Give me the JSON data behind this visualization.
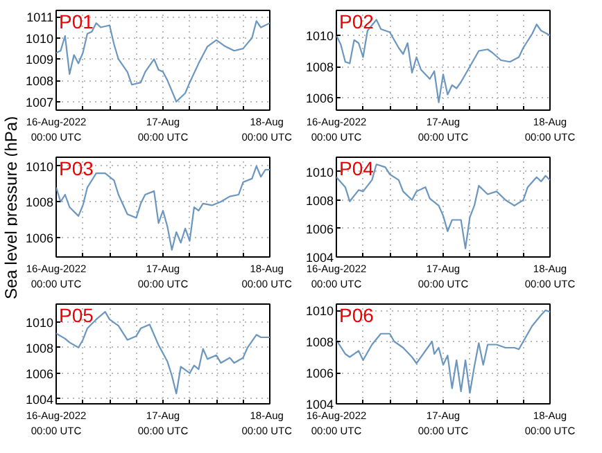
{
  "chart_data": [
    {
      "type": "line",
      "title": "P01",
      "xlim": [
        "2022-08-16T00:00",
        "2022-08-18T00:00"
      ],
      "ylim": [
        1006.6,
        1011.3
      ],
      "yticks": [
        1007,
        1008,
        1009,
        1010,
        1011
      ],
      "grid": true,
      "xticks": [
        {
          "value": "2022-08-16T00:00",
          "label": "16-Aug-2022\n00:00 UTC"
        },
        {
          "value": "2022-08-16T06:00",
          "label": null
        },
        {
          "value": "2022-08-16T12:00",
          "label": null
        },
        {
          "value": "2022-08-16T18:00",
          "label": null
        },
        {
          "value": "2022-08-17T00:00",
          "label": "17-Aug\n00:00 UTC"
        },
        {
          "value": "2022-08-17T06:00",
          "label": null
        },
        {
          "value": "2022-08-17T12:00",
          "label": null
        },
        {
          "value": "2022-08-17T18:00",
          "label": null
        },
        {
          "value": "2022-08-18T00:00",
          "label": "18-Aug\n00:00 UTC"
        }
      ],
      "series": [
        {
          "color": "#6a96c0",
          "x": [
            "2022-08-16T00:00",
            "2022-08-16T01:00",
            "2022-08-16T02:00",
            "2022-08-16T03:00",
            "2022-08-16T04:00",
            "2022-08-16T05:00",
            "2022-08-16T06:00",
            "2022-08-16T07:00",
            "2022-08-16T08:00",
            "2022-08-16T09:00",
            "2022-08-16T10:00",
            "2022-08-16T12:00",
            "2022-08-16T13:00",
            "2022-08-16T14:00",
            "2022-08-16T16:00",
            "2022-08-16T17:00",
            "2022-08-16T19:00",
            "2022-08-16T20:00",
            "2022-08-16T22:00",
            "2022-08-16T23:00",
            "2022-08-17T00:00",
            "2022-08-17T01:00",
            "2022-08-17T02:00",
            "2022-08-17T03:00",
            "2022-08-17T05:00",
            "2022-08-17T06:00",
            "2022-08-17T08:00",
            "2022-08-17T10:00",
            "2022-08-17T12:00",
            "2022-08-17T14:00",
            "2022-08-17T16:00",
            "2022-08-17T18:00",
            "2022-08-17T20:00",
            "2022-08-17T21:00",
            "2022-08-17T22:00",
            "2022-08-18T00:00"
          ],
          "values": [
            1009.3,
            1009.4,
            1010.1,
            1008.3,
            1009.2,
            1008.8,
            1009.3,
            1010.2,
            1010.3,
            1010.7,
            1010.5,
            1010.6,
            1009.7,
            1009.0,
            1008.4,
            1007.8,
            1007.9,
            1008.4,
            1009.0,
            1008.5,
            1008.4,
            1008.0,
            1007.5,
            1007.0,
            1007.4,
            1007.9,
            1008.8,
            1009.6,
            1009.9,
            1009.6,
            1009.4,
            1009.5,
            1010.0,
            1010.8,
            1010.5,
            1010.7
          ]
        }
      ]
    },
    {
      "type": "line",
      "title": "P02",
      "xlim": [
        "2022-08-16T00:00",
        "2022-08-18T00:00"
      ],
      "ylim": [
        1005.2,
        1011.6
      ],
      "yticks": [
        1006,
        1008,
        1010
      ],
      "grid": true,
      "xticks": [
        {
          "value": "2022-08-16T00:00",
          "label": "16-Aug-2022\n00:00 UTC"
        },
        {
          "value": "2022-08-16T06:00",
          "label": null
        },
        {
          "value": "2022-08-16T12:00",
          "label": null
        },
        {
          "value": "2022-08-16T18:00",
          "label": null
        },
        {
          "value": "2022-08-17T00:00",
          "label": "17-Aug\n00:00 UTC"
        },
        {
          "value": "2022-08-17T06:00",
          "label": null
        },
        {
          "value": "2022-08-17T12:00",
          "label": null
        },
        {
          "value": "2022-08-17T18:00",
          "label": null
        },
        {
          "value": "2022-08-18T00:00",
          "label": "18-Aug\n00:00 UTC"
        }
      ],
      "series": [
        {
          "color": "#6a96c0",
          "x": [
            "2022-08-16T00:00",
            "2022-08-16T01:00",
            "2022-08-16T02:00",
            "2022-08-16T03:00",
            "2022-08-16T04:00",
            "2022-08-16T05:00",
            "2022-08-16T06:00",
            "2022-08-16T07:00",
            "2022-08-16T09:00",
            "2022-08-16T10:00",
            "2022-08-16T12:00",
            "2022-08-16T14:00",
            "2022-08-16T15:00",
            "2022-08-16T16:00",
            "2022-08-16T17:00",
            "2022-08-16T18:00",
            "2022-08-16T19:00",
            "2022-08-16T21:00",
            "2022-08-16T22:00",
            "2022-08-16T23:00",
            "2022-08-17T00:00",
            "2022-08-17T01:00",
            "2022-08-17T02:00",
            "2022-08-17T03:00",
            "2022-08-17T04:00",
            "2022-08-17T06:00",
            "2022-08-17T08:00",
            "2022-08-17T10:00",
            "2022-08-17T11:00",
            "2022-08-17T13:00",
            "2022-08-17T15:00",
            "2022-08-17T17:00",
            "2022-08-17T18:00",
            "2022-08-17T20:00",
            "2022-08-17T21:00",
            "2022-08-17T22:00",
            "2022-08-18T00:00"
          ],
          "values": [
            1010.0,
            1009.4,
            1008.3,
            1008.2,
            1009.7,
            1009.5,
            1008.6,
            1010.3,
            1011.0,
            1010.4,
            1010.2,
            1009.2,
            1008.8,
            1009.5,
            1007.6,
            1008.6,
            1007.8,
            1007.2,
            1007.7,
            1005.7,
            1007.5,
            1006.2,
            1006.8,
            1006.6,
            1007.0,
            1008.0,
            1009.0,
            1009.1,
            1008.9,
            1008.4,
            1008.3,
            1008.6,
            1009.2,
            1010.1,
            1010.7,
            1010.3,
            1010.0
          ]
        }
      ]
    },
    {
      "type": "line",
      "title": "P03",
      "ylabel": "Sea level pressure (hPa)",
      "xlim": [
        "2022-08-16T00:00",
        "2022-08-18T00:00"
      ],
      "ylim": [
        1004.9,
        1010.5
      ],
      "yticks": [
        1006,
        1008,
        1010
      ],
      "grid": true,
      "xticks": [
        {
          "value": "2022-08-16T00:00",
          "label": "16-Aug-2022\n00:00 UTC"
        },
        {
          "value": "2022-08-16T06:00",
          "label": null
        },
        {
          "value": "2022-08-16T12:00",
          "label": null
        },
        {
          "value": "2022-08-16T18:00",
          "label": null
        },
        {
          "value": "2022-08-17T00:00",
          "label": "17-Aug\n00:00 UTC"
        },
        {
          "value": "2022-08-17T06:00",
          "label": null
        },
        {
          "value": "2022-08-17T12:00",
          "label": null
        },
        {
          "value": "2022-08-17T18:00",
          "label": null
        },
        {
          "value": "2022-08-18T00:00",
          "label": "18-Aug\n00:00 UTC"
        }
      ],
      "series": [
        {
          "color": "#6a96c0",
          "x": [
            "2022-08-16T00:00",
            "2022-08-16T01:00",
            "2022-08-16T02:00",
            "2022-08-16T03:00",
            "2022-08-16T05:00",
            "2022-08-16T06:00",
            "2022-08-16T07:00",
            "2022-08-16T09:00",
            "2022-08-16T11:00",
            "2022-08-16T13:00",
            "2022-08-16T14:00",
            "2022-08-16T16:00",
            "2022-08-16T18:00",
            "2022-08-16T19:00",
            "2022-08-16T20:00",
            "2022-08-16T22:00",
            "2022-08-16T23:00",
            "2022-08-17T00:00",
            "2022-08-17T01:00",
            "2022-08-17T02:00",
            "2022-08-17T03:00",
            "2022-08-17T04:00",
            "2022-08-17T05:00",
            "2022-08-17T06:00",
            "2022-08-17T07:00",
            "2022-08-17T08:00",
            "2022-08-17T09:00",
            "2022-08-17T11:00",
            "2022-08-17T13:00",
            "2022-08-17T15:00",
            "2022-08-17T17:00",
            "2022-08-17T18:00",
            "2022-08-17T20:00",
            "2022-08-17T21:00",
            "2022-08-17T22:00",
            "2022-08-17T23:00",
            "2022-08-18T00:00"
          ],
          "values": [
            1008.8,
            1008.0,
            1008.4,
            1007.7,
            1007.2,
            1007.8,
            1008.8,
            1009.6,
            1009.6,
            1009.2,
            1008.4,
            1007.3,
            1007.1,
            1007.9,
            1008.4,
            1008.6,
            1006.8,
            1007.5,
            1006.6,
            1005.3,
            1006.3,
            1005.7,
            1006.5,
            1005.8,
            1007.7,
            1007.5,
            1007.9,
            1007.8,
            1008.0,
            1008.3,
            1008.4,
            1009.1,
            1009.3,
            1010.0,
            1009.4,
            1009.8,
            1009.8
          ]
        }
      ]
    },
    {
      "type": "line",
      "title": "P04",
      "xlim": [
        "2022-08-16T00:00",
        "2022-08-18T00:00"
      ],
      "ylim": [
        1004,
        1011
      ],
      "yticks": [
        1004,
        1006,
        1008,
        1010
      ],
      "grid": true,
      "xticks": [
        {
          "value": "2022-08-16T00:00",
          "label": "16-Aug-2022\n00:00 UTC"
        },
        {
          "value": "2022-08-16T06:00",
          "label": null
        },
        {
          "value": "2022-08-16T12:00",
          "label": null
        },
        {
          "value": "2022-08-16T18:00",
          "label": null
        },
        {
          "value": "2022-08-17T00:00",
          "label": "17-Aug\n00:00 UTC"
        },
        {
          "value": "2022-08-17T06:00",
          "label": null
        },
        {
          "value": "2022-08-17T12:00",
          "label": null
        },
        {
          "value": "2022-08-17T18:00",
          "label": null
        },
        {
          "value": "2022-08-18T00:00",
          "label": "18-Aug\n00:00 UTC"
        }
      ],
      "series": [
        {
          "color": "#6a96c0",
          "x": [
            "2022-08-16T00:00",
            "2022-08-16T02:00",
            "2022-08-16T03:00",
            "2022-08-16T05:00",
            "2022-08-16T06:00",
            "2022-08-16T08:00",
            "2022-08-16T09:00",
            "2022-08-16T11:00",
            "2022-08-16T12:00",
            "2022-08-16T14:00",
            "2022-08-16T15:00",
            "2022-08-16T17:00",
            "2022-08-16T18:00",
            "2022-08-16T20:00",
            "2022-08-16T21:00",
            "2022-08-16T23:00",
            "2022-08-17T00:00",
            "2022-08-17T01:00",
            "2022-08-17T02:00",
            "2022-08-17T04:00",
            "2022-08-17T05:00",
            "2022-08-17T06:00",
            "2022-08-17T07:00",
            "2022-08-17T08:00",
            "2022-08-17T10:00",
            "2022-08-17T12:00",
            "2022-08-17T14:00",
            "2022-08-17T16:00",
            "2022-08-17T18:00",
            "2022-08-17T19:00",
            "2022-08-17T21:00",
            "2022-08-17T22:00",
            "2022-08-17T23:00",
            "2022-08-18T00:00"
          ],
          "values": [
            1009.6,
            1008.9,
            1007.9,
            1008.7,
            1008.6,
            1009.4,
            1010.5,
            1010.3,
            1009.8,
            1009.4,
            1008.6,
            1008.0,
            1008.6,
            1008.9,
            1008.1,
            1007.6,
            1006.9,
            1005.8,
            1006.6,
            1006.6,
            1004.6,
            1006.8,
            1007.6,
            1009.0,
            1008.4,
            1008.6,
            1008.0,
            1007.6,
            1008.0,
            1008.9,
            1009.6,
            1009.3,
            1009.7,
            1009.4
          ]
        }
      ]
    },
    {
      "type": "line",
      "title": "P05",
      "xlim": [
        "2022-08-16T00:00",
        "2022-08-18T00:00"
      ],
      "ylim": [
        1003.6,
        1011.4
      ],
      "yticks": [
        1004,
        1006,
        1008,
        1010
      ],
      "grid": true,
      "xticks": [
        {
          "value": "2022-08-16T00:00",
          "label": "16-Aug-2022\n00:00 UTC"
        },
        {
          "value": "2022-08-16T06:00",
          "label": null
        },
        {
          "value": "2022-08-16T12:00",
          "label": null
        },
        {
          "value": "2022-08-16T18:00",
          "label": null
        },
        {
          "value": "2022-08-17T00:00",
          "label": "17-Aug\n00:00 UTC"
        },
        {
          "value": "2022-08-17T06:00",
          "label": null
        },
        {
          "value": "2022-08-17T12:00",
          "label": null
        },
        {
          "value": "2022-08-17T18:00",
          "label": null
        },
        {
          "value": "2022-08-18T00:00",
          "label": "18-Aug\n00:00 UTC"
        }
      ],
      "series": [
        {
          "color": "#6a96c0",
          "x": [
            "2022-08-16T00:00",
            "2022-08-16T02:00",
            "2022-08-16T03:00",
            "2022-08-16T05:00",
            "2022-08-16T06:00",
            "2022-08-16T07:00",
            "2022-08-16T09:00",
            "2022-08-16T11:00",
            "2022-08-16T12:00",
            "2022-08-16T14:00",
            "2022-08-16T16:00",
            "2022-08-16T18:00",
            "2022-08-16T19:00",
            "2022-08-16T21:00",
            "2022-08-16T22:00",
            "2022-08-16T23:00",
            "2022-08-17T01:00",
            "2022-08-17T02:00",
            "2022-08-17T03:00",
            "2022-08-17T04:00",
            "2022-08-17T06:00",
            "2022-08-17T07:00",
            "2022-08-17T08:00",
            "2022-08-17T09:00",
            "2022-08-17T10:00",
            "2022-08-17T12:00",
            "2022-08-17T13:00",
            "2022-08-17T15:00",
            "2022-08-17T16:00",
            "2022-08-17T18:00",
            "2022-08-17T19:00",
            "2022-08-17T21:00",
            "2022-08-17T22:00",
            "2022-08-18T00:00"
          ],
          "values": [
            1009.1,
            1008.7,
            1008.4,
            1008.0,
            1008.6,
            1009.5,
            1010.2,
            1010.8,
            1010.2,
            1009.7,
            1008.6,
            1008.9,
            1009.5,
            1009.8,
            1009.0,
            1008.2,
            1006.9,
            1005.8,
            1004.4,
            1006.5,
            1006.0,
            1006.6,
            1006.3,
            1007.9,
            1007.1,
            1007.4,
            1006.8,
            1007.2,
            1006.8,
            1007.2,
            1008.0,
            1009.0,
            1008.8,
            1008.8
          ]
        }
      ]
    },
    {
      "type": "line",
      "title": "P06",
      "xlim": [
        "2022-08-16T00:00",
        "2022-08-18T00:00"
      ],
      "ylim": [
        1004,
        1010.4
      ],
      "yticks": [
        1004,
        1006,
        1008,
        1010
      ],
      "grid": true,
      "xticks": [
        {
          "value": "2022-08-16T00:00",
          "label": "16-Aug-2022\n00:00 UTC"
        },
        {
          "value": "2022-08-16T06:00",
          "label": null
        },
        {
          "value": "2022-08-16T12:00",
          "label": null
        },
        {
          "value": "2022-08-16T18:00",
          "label": null
        },
        {
          "value": "2022-08-17T00:00",
          "label": "17-Aug\n00:00 UTC"
        },
        {
          "value": "2022-08-17T06:00",
          "label": null
        },
        {
          "value": "2022-08-17T12:00",
          "label": null
        },
        {
          "value": "2022-08-17T18:00",
          "label": null
        },
        {
          "value": "2022-08-18T00:00",
          "label": "18-Aug\n00:00 UTC"
        }
      ],
      "series": [
        {
          "color": "#6a96c0",
          "x": [
            "2022-08-16T00:00",
            "2022-08-16T02:00",
            "2022-08-16T03:00",
            "2022-08-16T05:00",
            "2022-08-16T06:00",
            "2022-08-16T08:00",
            "2022-08-16T10:00",
            "2022-08-16T12:00",
            "2022-08-16T13:00",
            "2022-08-16T15:00",
            "2022-08-16T17:00",
            "2022-08-16T18:00",
            "2022-08-16T20:00",
            "2022-08-16T21:30",
            "2022-08-16T22:00",
            "2022-08-16T23:00",
            "2022-08-17T00:00",
            "2022-08-17T01:00",
            "2022-08-17T02:00",
            "2022-08-17T03:00",
            "2022-08-17T04:00",
            "2022-08-17T05:00",
            "2022-08-17T06:00",
            "2022-08-17T07:00",
            "2022-08-17T08:00",
            "2022-08-17T09:00",
            "2022-08-17T10:00",
            "2022-08-17T12:00",
            "2022-08-17T14:00",
            "2022-08-17T16:00",
            "2022-08-17T17:00",
            "2022-08-17T18:00",
            "2022-08-17T20:00",
            "2022-08-17T22:00",
            "2022-08-17T23:00",
            "2022-08-18T00:00"
          ],
          "values": [
            1008.1,
            1007.2,
            1007.0,
            1007.4,
            1006.8,
            1007.8,
            1008.5,
            1008.5,
            1008.0,
            1007.6,
            1007.0,
            1006.6,
            1007.4,
            1008.0,
            1007.2,
            1007.6,
            1006.5,
            1007.1,
            1005.0,
            1006.8,
            1004.8,
            1006.8,
            1004.7,
            1006.4,
            1007.9,
            1006.5,
            1007.8,
            1007.8,
            1007.6,
            1007.6,
            1007.5,
            1008.0,
            1009.0,
            1009.7,
            1010.0,
            1009.9
          ]
        }
      ]
    }
  ]
}
